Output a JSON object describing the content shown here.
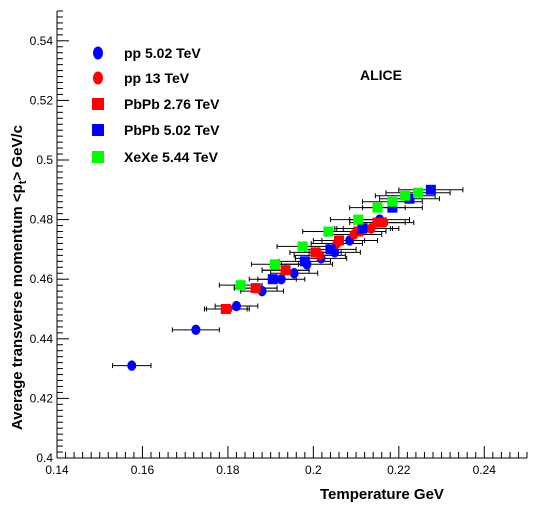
{
  "chart_data": {
    "type": "scatter",
    "title": "",
    "xlabel": "Temperature GeV",
    "ylabel_main": "Average transverse momentum <p",
    "ylabel_sub": "t",
    "ylabel_tail": "> GeV/c",
    "annotation": "ALICE",
    "xlim": [
      0.14,
      0.25
    ],
    "ylim": [
      0.4,
      0.55
    ],
    "x_ticks": [
      {
        "value": 0.14,
        "label": "0.14"
      },
      {
        "value": 0.16,
        "label": "0.16"
      },
      {
        "value": 0.18,
        "label": "0.18"
      },
      {
        "value": 0.2,
        "label": "0.2"
      },
      {
        "value": 0.22,
        "label": "0.22"
      },
      {
        "value": 0.24,
        "label": "0.24"
      }
    ],
    "y_ticks": [
      {
        "value": 0.4,
        "label": "0.4"
      },
      {
        "value": 0.42,
        "label": "0.42"
      },
      {
        "value": 0.44,
        "label": "0.44"
      },
      {
        "value": 0.46,
        "label": "0.46"
      },
      {
        "value": 0.48,
        "label": "0.48"
      },
      {
        "value": 0.5,
        "label": "0.5"
      },
      {
        "value": 0.52,
        "label": "0.52"
      },
      {
        "value": 0.54,
        "label": "0.54"
      }
    ],
    "legend_position": "top-left",
    "series": [
      {
        "name": "pp 5.02 TeV",
        "marker": "circle",
        "color": "#0000ff",
        "points": [
          {
            "x": 0.1575,
            "y": 0.431,
            "xerr": 0.0045,
            "yerr": 0.0015
          },
          {
            "x": 0.1725,
            "y": 0.443,
            "xerr": 0.0055,
            "yerr": 0.0015
          },
          {
            "x": 0.182,
            "y": 0.451,
            "xerr": 0.005,
            "yerr": 0.0015
          },
          {
            "x": 0.188,
            "y": 0.456,
            "xerr": 0.005,
            "yerr": 0.0015
          },
          {
            "x": 0.1925,
            "y": 0.46,
            "xerr": 0.0055,
            "yerr": 0.0015
          },
          {
            "x": 0.1955,
            "y": 0.462,
            "xerr": 0.0055,
            "yerr": 0.0015
          },
          {
            "x": 0.1985,
            "y": 0.465,
            "xerr": 0.006,
            "yerr": 0.0015
          },
          {
            "x": 0.2018,
            "y": 0.467,
            "xerr": 0.006,
            "yerr": 0.0015
          },
          {
            "x": 0.205,
            "y": 0.469,
            "xerr": 0.006,
            "yerr": 0.0015
          },
          {
            "x": 0.2085,
            "y": 0.473,
            "xerr": 0.0065,
            "yerr": 0.0015
          },
          {
            "x": 0.212,
            "y": 0.477,
            "xerr": 0.0065,
            "yerr": 0.0015
          },
          {
            "x": 0.2155,
            "y": 0.48,
            "xerr": 0.007,
            "yerr": 0.0015
          }
        ]
      },
      {
        "name": "pp 13 TeV",
        "marker": "circle",
        "color": "#ff0000",
        "points": [
          {
            "x": 0.18,
            "y": 0.45,
            "xerr": 0.005,
            "yerr": 0.0015
          },
          {
            "x": 0.1865,
            "y": 0.457,
            "xerr": 0.005,
            "yerr": 0.0015
          },
          {
            "x": 0.1935,
            "y": 0.463,
            "xerr": 0.0055,
            "yerr": 0.0015
          },
          {
            "x": 0.2015,
            "y": 0.468,
            "xerr": 0.006,
            "yerr": 0.0015
          },
          {
            "x": 0.2055,
            "y": 0.472,
            "xerr": 0.006,
            "yerr": 0.0015
          },
          {
            "x": 0.2095,
            "y": 0.475,
            "xerr": 0.0065,
            "yerr": 0.0015
          },
          {
            "x": 0.2135,
            "y": 0.477,
            "xerr": 0.0065,
            "yerr": 0.0015
          },
          {
            "x": 0.2165,
            "y": 0.479,
            "xerr": 0.007,
            "yerr": 0.0015
          }
        ]
      },
      {
        "name": "PbPb 2.76 TeV",
        "marker": "square",
        "color": "#ff0000",
        "points": [
          {
            "x": 0.1795,
            "y": 0.45,
            "xerr": 0.005,
            "yerr": 0.0015
          },
          {
            "x": 0.1865,
            "y": 0.457,
            "xerr": 0.005,
            "yerr": 0.0015
          },
          {
            "x": 0.1935,
            "y": 0.463,
            "xerr": 0.0055,
            "yerr": 0.0015
          },
          {
            "x": 0.2005,
            "y": 0.469,
            "xerr": 0.006,
            "yerr": 0.0015
          },
          {
            "x": 0.206,
            "y": 0.473,
            "xerr": 0.006,
            "yerr": 0.0015
          },
          {
            "x": 0.2105,
            "y": 0.476,
            "xerr": 0.0065,
            "yerr": 0.0015
          },
          {
            "x": 0.215,
            "y": 0.479,
            "xerr": 0.0065,
            "yerr": 0.0015
          }
        ]
      },
      {
        "name": "PbPb 5.02 TeV",
        "marker": "square",
        "color": "#0000ff",
        "points": [
          {
            "x": 0.1905,
            "y": 0.46,
            "xerr": 0.0055,
            "yerr": 0.0015
          },
          {
            "x": 0.198,
            "y": 0.466,
            "xerr": 0.006,
            "yerr": 0.0015
          },
          {
            "x": 0.204,
            "y": 0.47,
            "xerr": 0.006,
            "yerr": 0.0015
          },
          {
            "x": 0.2115,
            "y": 0.477,
            "xerr": 0.0065,
            "yerr": 0.0015
          },
          {
            "x": 0.2185,
            "y": 0.484,
            "xerr": 0.007,
            "yerr": 0.0015
          },
          {
            "x": 0.2225,
            "y": 0.487,
            "xerr": 0.007,
            "yerr": 0.0015
          },
          {
            "x": 0.2275,
            "y": 0.49,
            "xerr": 0.0075,
            "yerr": 0.0015
          }
        ]
      },
      {
        "name": "XeXe 5.44 TeV",
        "marker": "square",
        "color": "#00ff00",
        "points": [
          {
            "x": 0.183,
            "y": 0.458,
            "xerr": 0.005,
            "yerr": 0.0015
          },
          {
            "x": 0.191,
            "y": 0.465,
            "xerr": 0.0055,
            "yerr": 0.0015
          },
          {
            "x": 0.1975,
            "y": 0.471,
            "xerr": 0.006,
            "yerr": 0.0015
          },
          {
            "x": 0.2035,
            "y": 0.476,
            "xerr": 0.006,
            "yerr": 0.0015
          },
          {
            "x": 0.2105,
            "y": 0.48,
            "xerr": 0.0065,
            "yerr": 0.0015
          },
          {
            "x": 0.215,
            "y": 0.484,
            "xerr": 0.0065,
            "yerr": 0.0015
          },
          {
            "x": 0.2185,
            "y": 0.486,
            "xerr": 0.007,
            "yerr": 0.0015
          },
          {
            "x": 0.2215,
            "y": 0.488,
            "xerr": 0.007,
            "yerr": 0.0015
          },
          {
            "x": 0.2245,
            "y": 0.489,
            "xerr": 0.0075,
            "yerr": 0.0015
          }
        ]
      }
    ]
  }
}
